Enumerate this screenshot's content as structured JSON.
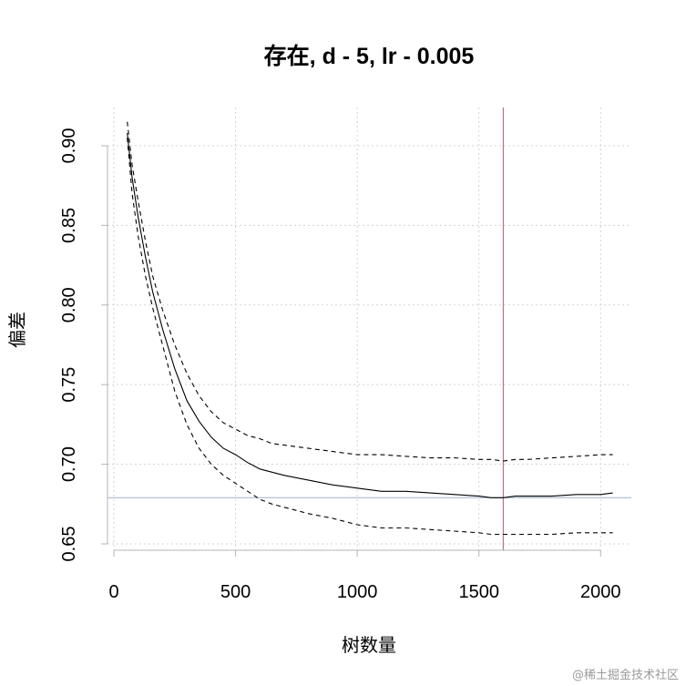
{
  "chart_data": {
    "type": "line",
    "title": "存在, d - 5, lr - 0.005",
    "xlabel": "树数量",
    "ylabel": "偏差",
    "xlim": [
      0,
      2100
    ],
    "ylim": [
      0.65,
      0.92
    ],
    "xticks": [
      0,
      500,
      1000,
      1500,
      2000
    ],
    "yticks": [
      0.65,
      0.7,
      0.75,
      0.8,
      0.85,
      0.9
    ],
    "xtick_labels": [
      "0",
      "500",
      "1000",
      "1500",
      "2000"
    ],
    "ytick_labels": [
      "0.65",
      "0.70",
      "0.75",
      "0.80",
      "0.85",
      "0.90"
    ],
    "grid": true,
    "series": [
      {
        "style": "solid",
        "color": "#000000",
        "x": [
          55,
          75,
          100,
          130,
          160,
          200,
          250,
          300,
          350,
          400,
          450,
          500,
          550,
          600,
          650,
          700,
          800,
          900,
          1000,
          1100,
          1200,
          1300,
          1400,
          1500,
          1550,
          1600,
          1650,
          1700,
          1800,
          1900,
          2000,
          2050
        ],
        "y": [
          0.908,
          0.88,
          0.855,
          0.83,
          0.808,
          0.785,
          0.76,
          0.74,
          0.727,
          0.717,
          0.71,
          0.706,
          0.701,
          0.697,
          0.695,
          0.693,
          0.69,
          0.687,
          0.685,
          0.683,
          0.683,
          0.682,
          0.681,
          0.68,
          0.679,
          0.679,
          0.68,
          0.68,
          0.68,
          0.681,
          0.681,
          0.682
        ]
      },
      {
        "style": "dashed",
        "color": "#000000",
        "x": [
          55,
          75,
          100,
          130,
          160,
          200,
          250,
          300,
          350,
          400,
          450,
          500,
          550,
          600,
          650,
          700,
          800,
          900,
          1000,
          1100,
          1200,
          1300,
          1400,
          1500,
          1550,
          1600,
          1650,
          1700,
          1800,
          1900,
          2000,
          2050
        ],
        "y": [
          0.915,
          0.888,
          0.865,
          0.84,
          0.818,
          0.797,
          0.775,
          0.757,
          0.743,
          0.733,
          0.726,
          0.722,
          0.718,
          0.716,
          0.713,
          0.712,
          0.71,
          0.708,
          0.706,
          0.706,
          0.705,
          0.704,
          0.704,
          0.703,
          0.703,
          0.702,
          0.703,
          0.703,
          0.704,
          0.705,
          0.706,
          0.706
        ]
      },
      {
        "style": "dashed",
        "color": "#000000",
        "x": [
          55,
          75,
          100,
          130,
          160,
          200,
          250,
          300,
          350,
          400,
          450,
          500,
          550,
          600,
          650,
          700,
          800,
          900,
          1000,
          1100,
          1200,
          1300,
          1400,
          1500,
          1550,
          1600,
          1650,
          1700,
          1800,
          1900,
          2000,
          2050
        ],
        "y": [
          0.905,
          0.87,
          0.843,
          0.818,
          0.798,
          0.775,
          0.746,
          0.725,
          0.71,
          0.7,
          0.693,
          0.688,
          0.683,
          0.678,
          0.675,
          0.673,
          0.669,
          0.666,
          0.662,
          0.66,
          0.66,
          0.659,
          0.658,
          0.657,
          0.656,
          0.656,
          0.656,
          0.656,
          0.656,
          0.657,
          0.657,
          0.657
        ]
      }
    ],
    "reference_lines": [
      {
        "orientation": "vertical",
        "value": 1600,
        "color": "#e0608c"
      },
      {
        "orientation": "horizontal",
        "value": 0.679,
        "color": "#aabbd6"
      }
    ]
  },
  "watermark": "@稀土掘金技术社区"
}
